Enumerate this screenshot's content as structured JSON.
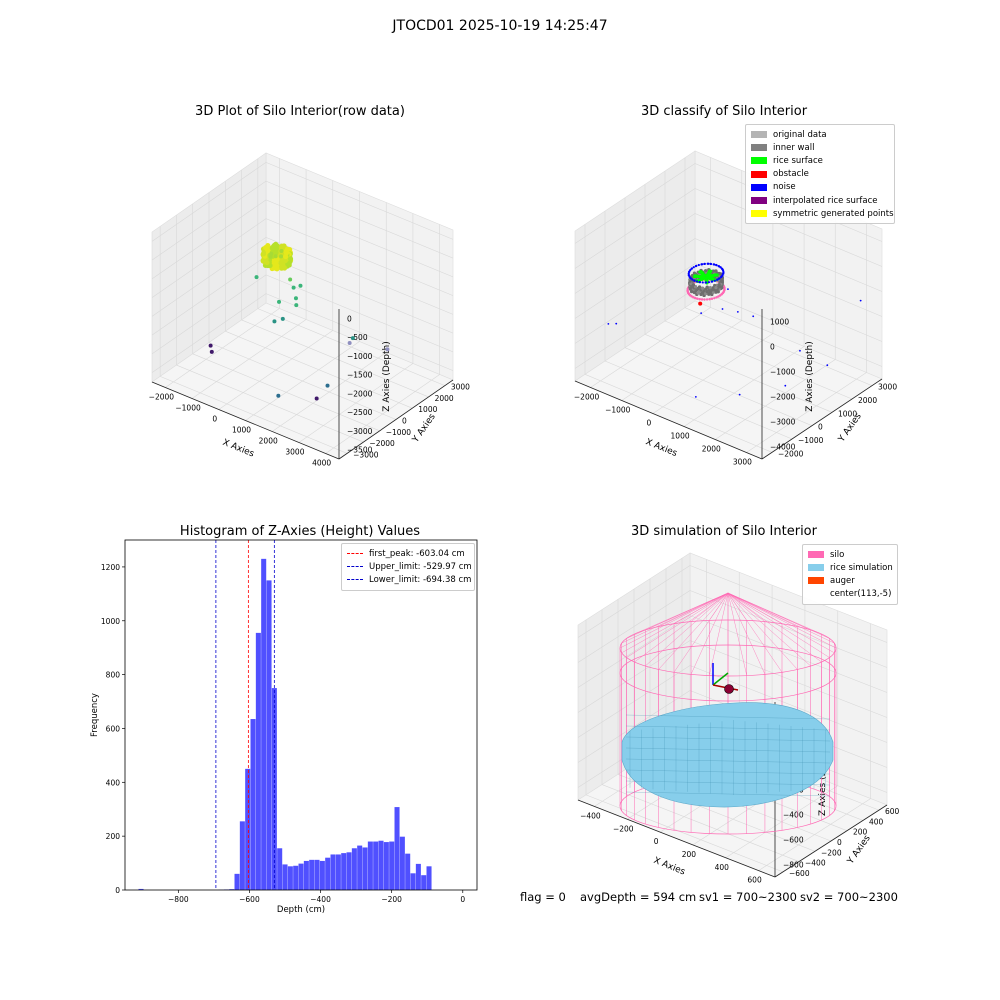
{
  "suptitle": "JTOCD01 2025-10-19 14:25:47",
  "footer": {
    "flag": "flag = 0",
    "avg": "avgDepth = 594 cm",
    "sv1": "sv1 = 700~2300",
    "sv2": "sv2 = 700~2300"
  },
  "colors": {
    "histogram_bar": "#5050ff",
    "first_peak_line": "#ff0000",
    "limit_line": "#0000cc",
    "silo": "#ff69b4",
    "rice_simulation": "#87ceeb",
    "auger": "#ff4500"
  },
  "chart_data": [
    {
      "type": "scatter",
      "panel": "3d-row-data",
      "title": "3D Plot of Silo Interior(row data)",
      "xlabel": "X Axies",
      "ylabel": "Y Axies",
      "zlabel": "Z Axies (Depth)",
      "xticks": [
        "−2000",
        "−1000",
        "0",
        "1000",
        "2000",
        "3000",
        "4000"
      ],
      "yticks": [
        "−3000",
        "−2000",
        "−1000",
        "0",
        "1000",
        "2000",
        "3000"
      ],
      "zticks": [
        "0",
        "−500",
        "−1000",
        "−1500",
        "−2000",
        "−2500",
        "−3000",
        "−3500"
      ],
      "xlim": [
        -2300,
        4200
      ],
      "ylim": [
        -3200,
        3500
      ],
      "zlim": [
        -3700,
        150
      ],
      "points": [
        {
          "x": 120,
          "y": -20,
          "z": -700
        },
        {
          "x": 300,
          "y": -10,
          "z": -650
        },
        {
          "x": -80,
          "y": 60,
          "z": -720
        },
        {
          "x": 200,
          "y": 180,
          "z": -600
        },
        {
          "x": 50,
          "y": -200,
          "z": -680
        },
        {
          "x": 550,
          "y": 100,
          "z": -1200
        },
        {
          "x": 700,
          "y": 50,
          "z": -1350
        },
        {
          "x": 900,
          "y": -150,
          "z": -1500
        },
        {
          "x": 400,
          "y": -300,
          "z": -1700
        },
        {
          "x": 650,
          "y": -500,
          "z": -2000
        },
        {
          "x": -500,
          "y": -100,
          "z": -1400
        },
        {
          "x": 850,
          "y": 200,
          "z": -1300
        },
        {
          "x": 300,
          "y": -400,
          "z": -2200
        },
        {
          "x": 1000,
          "y": -300,
          "z": -1600
        },
        {
          "x": 2500,
          "y": 300,
          "z": -2300
        },
        {
          "x": 2600,
          "y": 320,
          "z": -2150
        },
        {
          "x": 3400,
          "y": 1000,
          "z": -2400
        },
        {
          "x": 2500,
          "y": -1000,
          "z": -3000
        },
        {
          "x": 2300,
          "y": -1300,
          "z": -3300
        },
        {
          "x": -1800,
          "y": -600,
          "z": -3400
        },
        {
          "x": -1700,
          "y": -700,
          "z": -3500
        },
        {
          "x": 1500,
          "y": -2200,
          "z": -3200
        }
      ]
    },
    {
      "type": "scatter",
      "panel": "3d-classify",
      "title": "3D classify of Silo Interior",
      "xlabel": "X Axies",
      "ylabel": "Y Axies",
      "zlabel": "Z Axies (Depth)",
      "xticks": [
        "−2000",
        "−1000",
        "0",
        "1000",
        "2000",
        "3000"
      ],
      "yticks": [
        "−2000",
        "−1000",
        "0",
        "1000",
        "2000",
        "3000"
      ],
      "zticks": [
        "1000",
        "0",
        "−1000",
        "−2000",
        "−3000",
        "−4000"
      ],
      "xlim": [
        -2300,
        3400
      ],
      "ylim": [
        -2300,
        3400
      ],
      "zlim": [
        -4300,
        1200
      ],
      "legend_location": "top-right",
      "legend": [
        {
          "label": "original data",
          "color": "#b4b4b4"
        },
        {
          "label": "inner wall",
          "color": "#808080"
        },
        {
          "label": "rice surface",
          "color": "#00ff00"
        },
        {
          "label": "obstacle",
          "color": "#ff0000"
        },
        {
          "label": "noise",
          "color": "#0000ff"
        },
        {
          "label": "interpolated rice surface",
          "color": "#800080"
        },
        {
          "label": "symmetric generated points",
          "color": "#ffff00"
        }
      ]
    },
    {
      "type": "bar",
      "panel": "histogram",
      "title": "Histogram of Z-Axies (Height) Values",
      "xlabel": "Depth (cm)",
      "ylabel": "Frequency",
      "xlim": [
        -950,
        40
      ],
      "ylim": [
        0,
        1300
      ],
      "xticks": [
        -800,
        -600,
        -400,
        -200,
        0
      ],
      "yticks": [
        0,
        200,
        400,
        600,
        800,
        1000,
        1200
      ],
      "bin_width": 15,
      "bin_start": -912,
      "values": [
        4,
        0,
        0,
        0,
        0,
        0,
        0,
        0,
        0,
        0,
        0,
        0,
        0,
        0,
        0,
        1,
        2,
        3,
        60,
        255,
        450,
        635,
        955,
        1230,
        1150,
        750,
        155,
        95,
        88,
        90,
        98,
        108,
        112,
        112,
        108,
        120,
        132,
        132,
        137,
        140,
        155,
        165,
        158,
        180,
        180,
        183,
        178,
        180,
        308,
        198,
        135,
        62,
        97,
        55,
        88
      ],
      "lines": [
        {
          "label": "first_peak: -603.04 cm",
          "x": -603.04,
          "color": "#ff0000"
        },
        {
          "label": "Upper_limit: -529.97 cm",
          "x": -529.97,
          "color": "#0000cc"
        },
        {
          "label": "Lower_limit: -694.38 cm",
          "x": -694.38,
          "color": "#0000cc"
        }
      ],
      "legend_location": "top-right"
    },
    {
      "type": "scatter",
      "panel": "3d-simulation",
      "title": "3D simulation of Silo Interior",
      "xlabel": "X Axies",
      "ylabel": "Y Axies",
      "zlabel": "Z Axies (Depth)",
      "xticks": [
        "−400",
        "−200",
        "0",
        "200",
        "400",
        "600"
      ],
      "yticks": [
        "−600",
        "−400",
        "−200",
        "0",
        "200",
        "400",
        "600"
      ],
      "zticks": [
        "400",
        "200",
        "0",
        "−200",
        "−400",
        "−600",
        "−800"
      ],
      "legend_location": "top-right",
      "legend": [
        {
          "label": "silo",
          "color": "#ff69b4"
        },
        {
          "label": "rice simulation",
          "color": "#87ceeb"
        },
        {
          "label": "auger",
          "color": "#ff4500"
        },
        {
          "label": "center(113,-5)",
          "color": ""
        }
      ]
    }
  ]
}
